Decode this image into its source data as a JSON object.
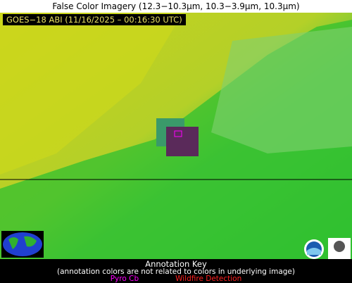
{
  "header": {
    "title": "False Color Imagery (12.3−10.3µm, 10.3−3.9µm, 10.3µm)"
  },
  "image": {
    "timestamp": "GOES−18 ABI (11/16/2025 – 00:16:30 UTC)"
  },
  "annotation_key": {
    "title": "Annotation Key",
    "note": "(annotation colors are not related to colors in underlying image)",
    "legend": [
      {
        "label": "Pyro Cb",
        "color": "#ff00ff"
      },
      {
        "label": "Wildfire Detection",
        "color": "#ff2020"
      }
    ]
  }
}
